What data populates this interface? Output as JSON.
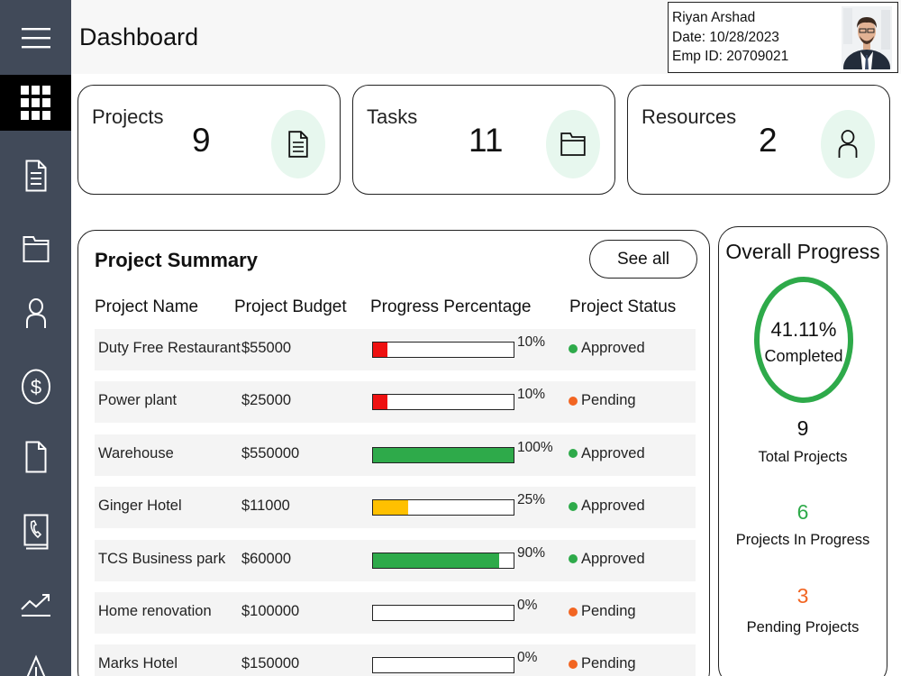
{
  "header": {
    "title": "Dashboard",
    "user": {
      "name": "Riyan Arshad",
      "date": "Date: 10/28/2023",
      "emp_id": "Emp ID: 20709021"
    }
  },
  "sidebar": {
    "items": [
      {
        "icon": "menu-icon",
        "active": false
      },
      {
        "icon": "dashboard-grid-icon",
        "active": true
      },
      {
        "icon": "document-icon",
        "active": false
      },
      {
        "icon": "folder-icon",
        "active": false
      },
      {
        "icon": "user-icon",
        "active": false
      },
      {
        "icon": "dollar-icon",
        "active": false
      },
      {
        "icon": "file-icon",
        "active": false
      },
      {
        "icon": "phone-book-icon",
        "active": false
      },
      {
        "icon": "chart-trend-icon",
        "active": false
      },
      {
        "icon": "warning-icon",
        "active": false
      }
    ]
  },
  "stats": [
    {
      "label": "Projects",
      "value": "9",
      "icon": "document-icon"
    },
    {
      "label": "Tasks",
      "value": "11",
      "icon": "folder-icon"
    },
    {
      "label": "Resources",
      "value": "2",
      "icon": "user-icon"
    }
  ],
  "summary": {
    "title": "Project Summary",
    "see_all": "See all",
    "columns": [
      "Project Name",
      "Project Budget",
      "Progress Percentage",
      "Project Status"
    ],
    "rows": [
      {
        "name": "Duty Free Restaurant",
        "budget": "$55000",
        "progress": 10,
        "progress_label": "10%",
        "status": "Approved",
        "bar_color": "#ee1111",
        "status_color": "#2eaa4a"
      },
      {
        "name": "Power plant",
        "budget": "$25000",
        "progress": 10,
        "progress_label": "10%",
        "status": "Pending",
        "bar_color": "#ee1111",
        "status_color": "#f26522"
      },
      {
        "name": "Warehouse",
        "budget": "$550000",
        "progress": 100,
        "progress_label": "100%",
        "status": "Approved",
        "bar_color": "#2eaa4a",
        "status_color": "#2eaa4a"
      },
      {
        "name": "Ginger Hotel",
        "budget": "$11000",
        "progress": 25,
        "progress_label": "25%",
        "status": "Approved",
        "bar_color": "#ffc000",
        "status_color": "#2eaa4a"
      },
      {
        "name": "TCS Business park",
        "budget": "$60000",
        "progress": 90,
        "progress_label": "90%",
        "status": "Approved",
        "bar_color": "#2eaa4a",
        "status_color": "#2eaa4a"
      },
      {
        "name": "Home renovation",
        "budget": "$100000",
        "progress": 0,
        "progress_label": "0%",
        "status": "Pending",
        "bar_color": "#2eaa4a",
        "status_color": "#f26522"
      },
      {
        "name": "Marks Hotel",
        "budget": "$150000",
        "progress": 0,
        "progress_label": "0%",
        "status": "Pending",
        "bar_color": "#2eaa4a",
        "status_color": "#f26522"
      }
    ]
  },
  "overall": {
    "title": "Overall Progress",
    "percent": "41.11%",
    "completed_label": "Completed",
    "total": "9",
    "total_label": "Total Projects",
    "in_progress": "6",
    "in_progress_label": "Projects In Progress",
    "pending": "3",
    "pending_label": "Pending Projects"
  },
  "colors": {
    "sidebar": "#414a59",
    "approved": "#2eaa4a",
    "pending": "#f26522",
    "ring": "#2eaa4a",
    "icon_bg": "#e7f7ee"
  }
}
